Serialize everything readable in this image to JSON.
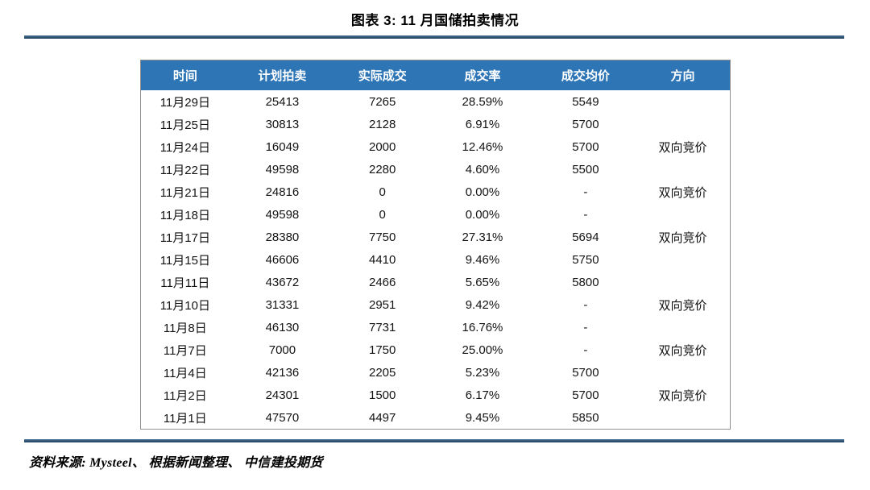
{
  "page": {
    "title": "图表 3:  11 月国储拍卖情况",
    "source_note": "资料来源: Mysteel、 根据新闻整理、 中信建投期货"
  },
  "colors": {
    "header_background": "#2E75B6",
    "header_text": "#FFFFFF",
    "rule_navy": "#1F3E5C",
    "table_border_gray": "#8F8F8F",
    "body_text": "#131313"
  },
  "table": {
    "columns": [
      "时间",
      "计划拍卖",
      "实际成交",
      "成交率",
      "成交均价",
      "方向"
    ],
    "rows": [
      [
        "11月29日",
        "25413",
        "7265",
        "28.59%",
        "5549",
        ""
      ],
      [
        "11月25日",
        "30813",
        "2128",
        "6.91%",
        "5700",
        ""
      ],
      [
        "11月24日",
        "16049",
        "2000",
        "12.46%",
        "5700",
        "双向竞价"
      ],
      [
        "11月22日",
        "49598",
        "2280",
        "4.60%",
        "5500",
        ""
      ],
      [
        "11月21日",
        "24816",
        "0",
        "0.00%",
        "-",
        "双向竞价"
      ],
      [
        "11月18日",
        "49598",
        "0",
        "0.00%",
        "-",
        ""
      ],
      [
        "11月17日",
        "28380",
        "7750",
        "27.31%",
        "5694",
        "双向竞价"
      ],
      [
        "11月15日",
        "46606",
        "4410",
        "9.46%",
        "5750",
        ""
      ],
      [
        "11月11日",
        "43672",
        "2466",
        "5.65%",
        "5800",
        ""
      ],
      [
        "11月10日",
        "31331",
        "2951",
        "9.42%",
        "-",
        "双向竞价"
      ],
      [
        "11月8日",
        "46130",
        "7731",
        "16.76%",
        "-",
        ""
      ],
      [
        "11月7日",
        "7000",
        "1750",
        "25.00%",
        "-",
        "双向竞价"
      ],
      [
        "11月4日",
        "42136",
        "2205",
        "5.23%",
        "5700",
        ""
      ],
      [
        "11月2日",
        "24301",
        "1500",
        "6.17%",
        "5700",
        "双向竞价"
      ],
      [
        "11月1日",
        "47570",
        "4497",
        "9.45%",
        "5850",
        ""
      ]
    ]
  }
}
